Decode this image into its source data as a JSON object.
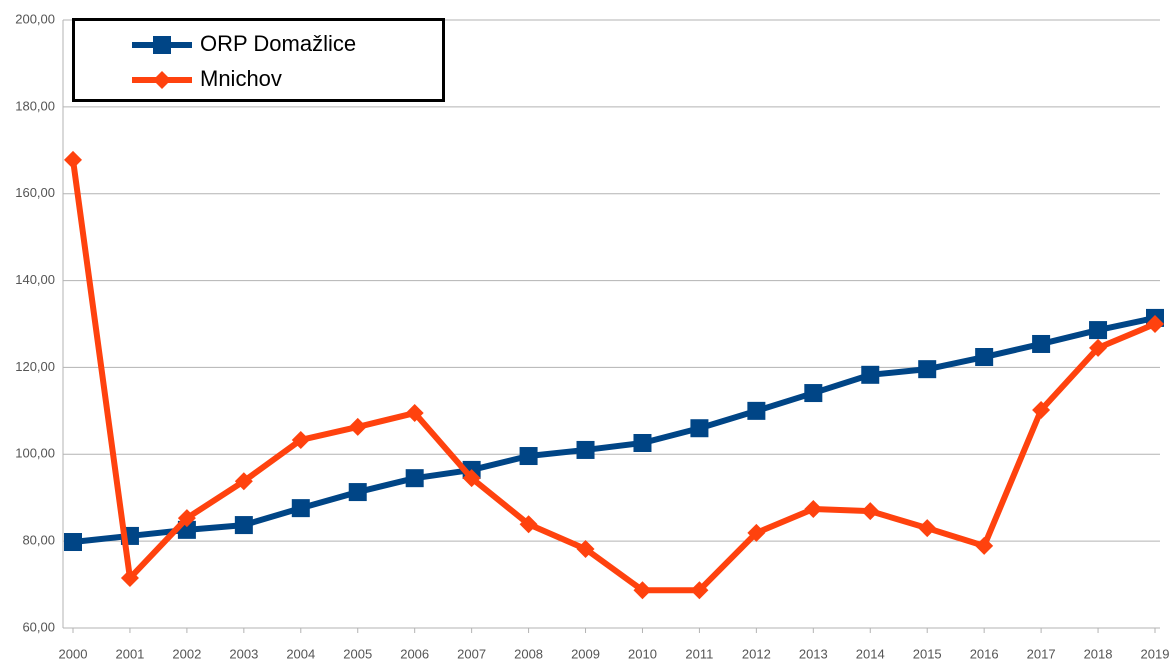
{
  "chart_data": {
    "type": "line",
    "categories": [
      "2000",
      "2001",
      "2002",
      "2003",
      "2004",
      "2005",
      "2006",
      "2007",
      "2008",
      "2009",
      "2010",
      "2011",
      "2012",
      "2013",
      "2014",
      "2015",
      "2016",
      "2017",
      "2018",
      "2019"
    ],
    "series": [
      {
        "name": "ORP Domažlice",
        "color": "#004586",
        "marker": "square",
        "values": [
          79.8,
          81.2,
          82.6,
          83.7,
          87.6,
          91.3,
          94.5,
          96.4,
          99.6,
          101,
          102.6,
          106,
          110,
          114.1,
          118.3,
          119.6,
          122.4,
          125.4,
          128.6,
          131.4
        ]
      },
      {
        "name": "Mnichov",
        "color": "#ff420e",
        "marker": "diamond",
        "values": [
          167.8,
          71.5,
          85.3,
          93.8,
          103.3,
          106.3,
          109.5,
          94.5,
          83.9,
          78.2,
          68.7,
          68.7,
          81.9,
          87.4,
          86.9,
          83,
          78.9,
          110.2,
          124.5,
          130
        ]
      }
    ],
    "ylim": [
      60,
      200
    ],
    "yticks": [
      {
        "value": 60,
        "label": "60,00"
      },
      {
        "value": 80,
        "label": "80,00"
      },
      {
        "value": 100,
        "label": "100,00"
      },
      {
        "value": 120,
        "label": "120,00"
      },
      {
        "value": 140,
        "label": "140,00"
      },
      {
        "value": 160,
        "label": "160,00"
      },
      {
        "value": 180,
        "label": "180,00"
      },
      {
        "value": 200,
        "label": "200,00"
      }
    ],
    "grid": true,
    "legend": "top-left"
  }
}
